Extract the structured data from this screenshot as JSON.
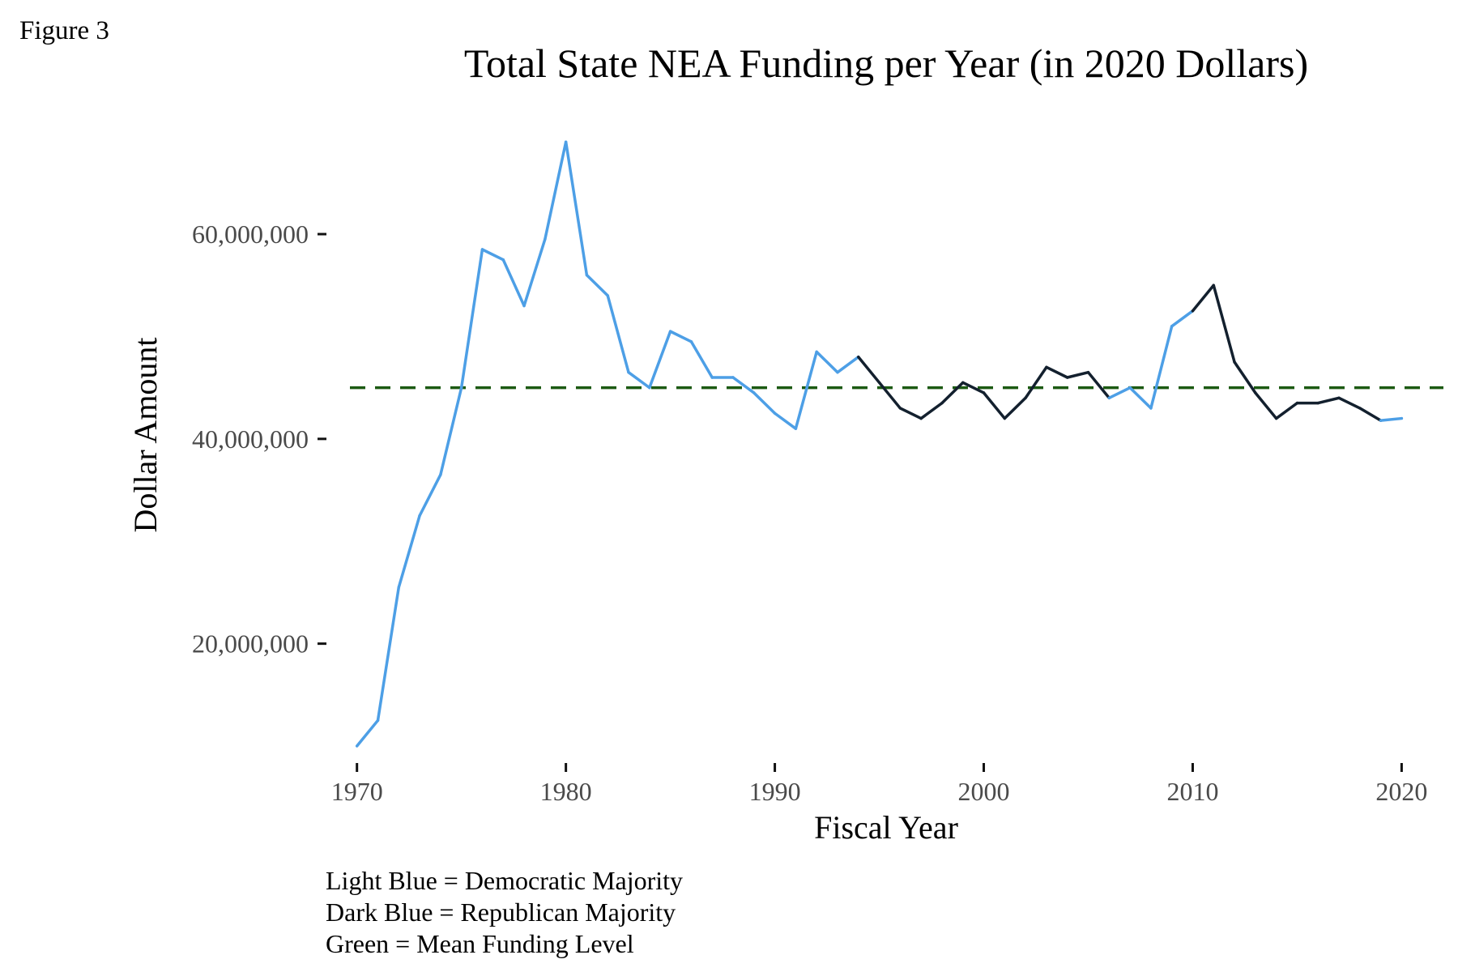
{
  "figure_label": "Figure 3",
  "chart_data": {
    "type": "line",
    "title": "Total State NEA Funding per Year (in 2020 Dollars)",
    "xlabel": "Fiscal Year",
    "ylabel": "Dollar Amount",
    "x_ticks": [
      1970,
      1980,
      1990,
      2000,
      2010,
      2020
    ],
    "y_ticks": [
      20000000,
      40000000,
      60000000
    ],
    "y_tick_labels": [
      "20,000,000",
      "40,000,000",
      "60,000,000"
    ],
    "xlim": [
      1968.5,
      2022
    ],
    "ylim": [
      8500000,
      71000000
    ],
    "grid": false,
    "series": [
      {
        "x": [
          1970,
          1971,
          1972,
          1973,
          1974,
          1975,
          1976,
          1977,
          1978,
          1979,
          1980,
          1981,
          1982,
          1983,
          1984,
          1985,
          1986,
          1987,
          1988,
          1989,
          1990,
          1991,
          1992,
          1993,
          1994,
          1995,
          1996,
          1997,
          1998,
          1999,
          2000,
          2001,
          2002,
          2003,
          2004,
          2005,
          2006,
          2007,
          2008,
          2009,
          2010,
          2011,
          2012,
          2013,
          2014,
          2015,
          2016,
          2017,
          2018,
          2019,
          2020
        ],
        "values": [
          10000000,
          12500000,
          25500000,
          32500000,
          36500000,
          45000000,
          58500000,
          57500000,
          53000000,
          59500000,
          69000000,
          56000000,
          54000000,
          46500000,
          45000000,
          50500000,
          49500000,
          46000000,
          46000000,
          44500000,
          42500000,
          41000000,
          48500000,
          46500000,
          48000000,
          45500000,
          43000000,
          42000000,
          43500000,
          45500000,
          44500000,
          42000000,
          44000000,
          47000000,
          46000000,
          46500000,
          44000000,
          45000000,
          43000000,
          51000000,
          52500000,
          55000000,
          47500000,
          44500000,
          42000000,
          43500000,
          43500000,
          44000000,
          43000000,
          41800000,
          42000000
        ],
        "party": [
          "D",
          "D",
          "D",
          "D",
          "D",
          "D",
          "D",
          "D",
          "D",
          "D",
          "D",
          "D",
          "D",
          "D",
          "D",
          "D",
          "D",
          "D",
          "D",
          "D",
          "D",
          "D",
          "D",
          "D",
          "D",
          "R",
          "R",
          "R",
          "R",
          "R",
          "R",
          "R",
          "R",
          "R",
          "R",
          "R",
          "R",
          "D",
          "D",
          "D",
          "D",
          "R",
          "R",
          "R",
          "R",
          "R",
          "R",
          "R",
          "R",
          "R",
          "D"
        ]
      }
    ],
    "mean_line": 45000000,
    "colors": {
      "democratic": "#4d9fe6",
      "republican": "#13202e",
      "mean": "#1c5a12"
    }
  },
  "legend_notes": [
    "Light Blue = Democratic Majority",
    "Dark Blue = Republican Majority",
    "Green = Mean Funding Level"
  ]
}
